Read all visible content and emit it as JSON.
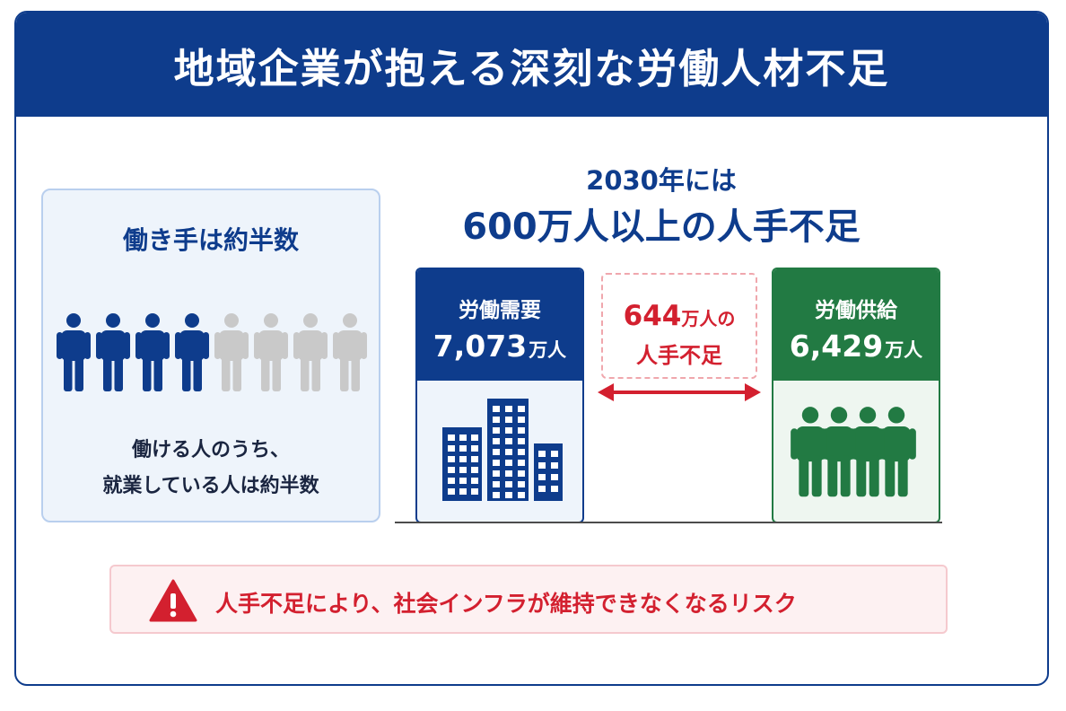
{
  "header": {
    "title": "地域企業が抱える深刻な労働人材不足"
  },
  "left_panel": {
    "title": "働き手は約半数",
    "people": {
      "total": 8,
      "highlighted": 4
    },
    "caption_line1": "働ける人のうち、",
    "caption_line2": "就業している人は約半数"
  },
  "forecast": {
    "line1": "2030年には",
    "line2": "600万人以上の人手不足"
  },
  "demand": {
    "label": "労働需要",
    "value": "7,073",
    "unit": "万人",
    "icon": "building-icon"
  },
  "supply": {
    "label": "労働供給",
    "value": "6,429",
    "unit": "万人",
    "icon": "people-group-icon"
  },
  "gap": {
    "value": "644",
    "unit": "万人の",
    "text": "人手不足"
  },
  "risk": {
    "icon": "warning-icon",
    "text": "人手不足により、社会インフラが維持できなくなるリスク"
  },
  "colors": {
    "navy": "#0e3c8c",
    "green": "#227a43",
    "red": "#d3202f",
    "gray_person": "#c9c9c9"
  }
}
